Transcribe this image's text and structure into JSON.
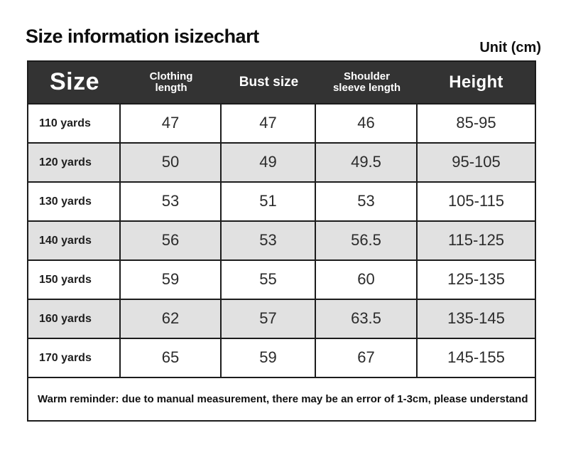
{
  "page": {
    "title": "Size information isizechart",
    "unit_label": "Unit (cm)"
  },
  "table": {
    "headers": {
      "size": "Size",
      "clothing_length": "Clothing length",
      "bust_size": "Bust size",
      "shoulder_sleeve_length": "Shoulder sleeve length",
      "height": "Height"
    },
    "rows": [
      {
        "size": "110 yards",
        "clothing_length": "47",
        "bust_size": "47",
        "shoulder_sleeve_length": "46",
        "height": "85-95"
      },
      {
        "size": "120 yards",
        "clothing_length": "50",
        "bust_size": "49",
        "shoulder_sleeve_length": "49.5",
        "height": "95-105"
      },
      {
        "size": "130 yards",
        "clothing_length": "53",
        "bust_size": "51",
        "shoulder_sleeve_length": "53",
        "height": "105-115"
      },
      {
        "size": "140 yards",
        "clothing_length": "56",
        "bust_size": "53",
        "shoulder_sleeve_length": "56.5",
        "height": "115-125"
      },
      {
        "size": "150 yards",
        "clothing_length": "59",
        "bust_size": "55",
        "shoulder_sleeve_length": "60",
        "height": "125-135"
      },
      {
        "size": "160 yards",
        "clothing_length": "62",
        "bust_size": "57",
        "shoulder_sleeve_length": "63.5",
        "height": "135-145"
      },
      {
        "size": "170 yards",
        "clothing_length": "65",
        "bust_size": "59",
        "shoulder_sleeve_length": "67",
        "height": "145-155"
      }
    ],
    "footer_note": "Warm reminder: due to manual measurement, there may be an error of 1-3cm, please understand"
  },
  "colors": {
    "header_bg": "#333333",
    "row_alt_bg": "#e1e1e1",
    "border": "#1c1c1c",
    "text": "#242424",
    "header_text": "#ffffff"
  },
  "chart_data": {
    "type": "table",
    "title": "Size information isizechart",
    "unit": "cm",
    "columns": [
      "Size",
      "Clothing length",
      "Bust size",
      "Shoulder sleeve length",
      "Height"
    ],
    "rows": [
      [
        "110 yards",
        47,
        47,
        46,
        "85-95"
      ],
      [
        "120 yards",
        50,
        49,
        49.5,
        "95-105"
      ],
      [
        "130 yards",
        53,
        51,
        53,
        "105-115"
      ],
      [
        "140 yards",
        56,
        53,
        56.5,
        "115-125"
      ],
      [
        "150 yards",
        59,
        55,
        60,
        "125-135"
      ],
      [
        "160 yards",
        62,
        57,
        63.5,
        "135-145"
      ],
      [
        "170 yards",
        65,
        59,
        67,
        "145-155"
      ]
    ],
    "note": "Warm reminder: due to manual measurement, there may be an error of 1-3cm, please understand",
    "layout": {
      "alternating_row_shading": true,
      "header_style": "dark"
    }
  }
}
